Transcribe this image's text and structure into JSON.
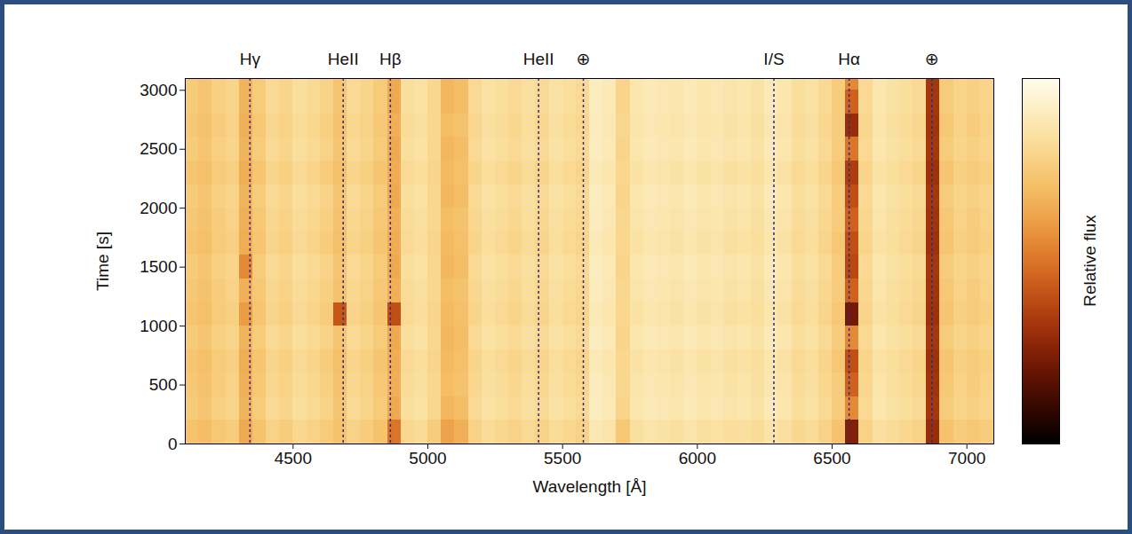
{
  "chart_data": {
    "type": "heatmap",
    "xlabel": "Wavelength [Å]",
    "ylabel": "Time [s]",
    "colorbar_label": "Relative flux",
    "xlim": [
      4100,
      7100
    ],
    "ylim": [
      0,
      3100
    ],
    "xticks": [
      4500,
      5000,
      5500,
      6000,
      6500,
      7000
    ],
    "yticks": [
      0,
      500,
      1000,
      1500,
      2000,
      2500,
      3000
    ],
    "zlim": [
      0,
      1
    ],
    "zticks": [],
    "line_markers": [
      {
        "label": "Hγ",
        "wavelength": 4340
      },
      {
        "label": "HeII",
        "wavelength": 4686
      },
      {
        "label": "Hβ",
        "wavelength": 4861
      },
      {
        "label": "HeII",
        "wavelength": 5411
      },
      {
        "label": "⊕",
        "wavelength": 5577
      },
      {
        "label": "I/S",
        "wavelength": 6284
      },
      {
        "label": "Hα",
        "wavelength": 6563
      },
      {
        "label": "⊕",
        "wavelength": 6870
      }
    ],
    "x_edges": [
      4100,
      4150,
      4200,
      4250,
      4300,
      4350,
      4400,
      4450,
      4500,
      4550,
      4600,
      4650,
      4700,
      4750,
      4800,
      4850,
      4900,
      4950,
      5000,
      5050,
      5100,
      5150,
      5200,
      5250,
      5300,
      5350,
      5400,
      5450,
      5500,
      5550,
      5600,
      5650,
      5700,
      5750,
      5800,
      5850,
      5900,
      5950,
      6000,
      6050,
      6100,
      6150,
      6200,
      6250,
      6300,
      6350,
      6400,
      6450,
      6500,
      6550,
      6600,
      6650,
      6700,
      6750,
      6800,
      6850,
      6900,
      6950,
      7000,
      7050,
      7100
    ],
    "y_edges": [
      0,
      200,
      400,
      600,
      800,
      1000,
      1200,
      1400,
      1600,
      1800,
      2000,
      2200,
      2400,
      2600,
      2800,
      3000,
      3100
    ],
    "cells": [
      [
        0.72,
        0.7,
        0.74,
        0.76,
        0.64,
        0.72,
        0.78,
        0.76,
        0.8,
        0.78,
        0.75,
        0.72,
        0.78,
        0.76,
        0.72,
        0.5,
        0.8,
        0.82,
        0.76,
        0.62,
        0.66,
        0.78,
        0.82,
        0.8,
        0.78,
        0.81,
        0.78,
        0.82,
        0.8,
        0.78,
        0.88,
        0.86,
        0.74,
        0.84,
        0.86,
        0.85,
        0.84,
        0.86,
        0.84,
        0.85,
        0.83,
        0.84,
        0.82,
        0.86,
        0.84,
        0.8,
        0.82,
        0.78,
        0.72,
        0.25,
        0.78,
        0.84,
        0.82,
        0.8,
        0.78,
        0.3,
        0.72,
        0.76,
        0.74,
        0.76
      ],
      [
        0.75,
        0.73,
        0.77,
        0.79,
        0.67,
        0.75,
        0.81,
        0.79,
        0.83,
        0.81,
        0.78,
        0.73,
        0.81,
        0.79,
        0.75,
        0.64,
        0.83,
        0.85,
        0.8,
        0.68,
        0.7,
        0.81,
        0.85,
        0.83,
        0.81,
        0.84,
        0.81,
        0.85,
        0.83,
        0.81,
        0.91,
        0.89,
        0.79,
        0.87,
        0.89,
        0.88,
        0.87,
        0.89,
        0.87,
        0.88,
        0.86,
        0.87,
        0.85,
        0.89,
        0.87,
        0.83,
        0.85,
        0.81,
        0.76,
        0.55,
        0.81,
        0.87,
        0.85,
        0.83,
        0.81,
        0.33,
        0.75,
        0.79,
        0.77,
        0.79
      ],
      [
        0.74,
        0.72,
        0.76,
        0.78,
        0.66,
        0.74,
        0.8,
        0.78,
        0.82,
        0.8,
        0.77,
        0.72,
        0.8,
        0.78,
        0.74,
        0.66,
        0.82,
        0.84,
        0.8,
        0.7,
        0.72,
        0.8,
        0.84,
        0.82,
        0.8,
        0.83,
        0.8,
        0.84,
        0.82,
        0.8,
        0.9,
        0.88,
        0.8,
        0.86,
        0.88,
        0.87,
        0.86,
        0.88,
        0.86,
        0.87,
        0.85,
        0.86,
        0.84,
        0.88,
        0.86,
        0.82,
        0.84,
        0.8,
        0.76,
        0.45,
        0.8,
        0.86,
        0.84,
        0.82,
        0.8,
        0.32,
        0.74,
        0.78,
        0.76,
        0.78
      ],
      [
        0.73,
        0.71,
        0.75,
        0.77,
        0.65,
        0.73,
        0.79,
        0.77,
        0.81,
        0.79,
        0.76,
        0.71,
        0.79,
        0.77,
        0.73,
        0.65,
        0.81,
        0.83,
        0.79,
        0.69,
        0.71,
        0.79,
        0.83,
        0.81,
        0.79,
        0.82,
        0.79,
        0.83,
        0.81,
        0.79,
        0.89,
        0.87,
        0.8,
        0.85,
        0.87,
        0.86,
        0.85,
        0.87,
        0.85,
        0.86,
        0.84,
        0.85,
        0.83,
        0.87,
        0.85,
        0.81,
        0.83,
        0.79,
        0.74,
        0.4,
        0.79,
        0.85,
        0.83,
        0.81,
        0.79,
        0.31,
        0.73,
        0.77,
        0.75,
        0.77
      ],
      [
        0.75,
        0.73,
        0.77,
        0.79,
        0.67,
        0.75,
        0.81,
        0.79,
        0.83,
        0.81,
        0.78,
        0.73,
        0.81,
        0.79,
        0.75,
        0.64,
        0.83,
        0.85,
        0.8,
        0.68,
        0.7,
        0.81,
        0.85,
        0.83,
        0.81,
        0.84,
        0.81,
        0.85,
        0.83,
        0.81,
        0.91,
        0.89,
        0.79,
        0.87,
        0.89,
        0.88,
        0.87,
        0.89,
        0.87,
        0.88,
        0.86,
        0.87,
        0.85,
        0.89,
        0.87,
        0.83,
        0.85,
        0.81,
        0.76,
        0.55,
        0.81,
        0.87,
        0.85,
        0.83,
        0.81,
        0.33,
        0.75,
        0.79,
        0.77,
        0.79
      ],
      [
        0.73,
        0.71,
        0.75,
        0.77,
        0.6,
        0.73,
        0.79,
        0.77,
        0.81,
        0.79,
        0.76,
        0.42,
        0.79,
        0.77,
        0.73,
        0.4,
        0.81,
        0.83,
        0.79,
        0.69,
        0.71,
        0.79,
        0.83,
        0.81,
        0.79,
        0.82,
        0.79,
        0.83,
        0.81,
        0.79,
        0.89,
        0.87,
        0.8,
        0.85,
        0.87,
        0.86,
        0.85,
        0.87,
        0.85,
        0.86,
        0.84,
        0.85,
        0.83,
        0.87,
        0.85,
        0.81,
        0.83,
        0.79,
        0.74,
        0.22,
        0.79,
        0.85,
        0.83,
        0.81,
        0.79,
        0.31,
        0.73,
        0.77,
        0.75,
        0.77
      ],
      [
        0.74,
        0.72,
        0.76,
        0.78,
        0.66,
        0.74,
        0.8,
        0.78,
        0.82,
        0.8,
        0.77,
        0.72,
        0.8,
        0.78,
        0.74,
        0.66,
        0.82,
        0.84,
        0.8,
        0.7,
        0.72,
        0.8,
        0.84,
        0.82,
        0.8,
        0.83,
        0.8,
        0.84,
        0.82,
        0.8,
        0.9,
        0.88,
        0.8,
        0.86,
        0.88,
        0.87,
        0.86,
        0.88,
        0.86,
        0.87,
        0.85,
        0.86,
        0.84,
        0.88,
        0.86,
        0.82,
        0.84,
        0.8,
        0.76,
        0.45,
        0.8,
        0.86,
        0.84,
        0.82,
        0.8,
        0.32,
        0.74,
        0.78,
        0.76,
        0.78
      ],
      [
        0.75,
        0.73,
        0.77,
        0.79,
        0.55,
        0.75,
        0.81,
        0.79,
        0.83,
        0.81,
        0.78,
        0.73,
        0.81,
        0.79,
        0.75,
        0.64,
        0.83,
        0.85,
        0.8,
        0.68,
        0.7,
        0.81,
        0.85,
        0.83,
        0.81,
        0.84,
        0.81,
        0.85,
        0.83,
        0.81,
        0.91,
        0.89,
        0.79,
        0.87,
        0.89,
        0.88,
        0.87,
        0.89,
        0.87,
        0.88,
        0.86,
        0.87,
        0.85,
        0.89,
        0.87,
        0.83,
        0.85,
        0.81,
        0.76,
        0.38,
        0.81,
        0.87,
        0.85,
        0.83,
        0.81,
        0.33,
        0.75,
        0.79,
        0.77,
        0.79
      ],
      [
        0.73,
        0.71,
        0.75,
        0.77,
        0.65,
        0.73,
        0.79,
        0.77,
        0.81,
        0.79,
        0.76,
        0.71,
        0.79,
        0.77,
        0.73,
        0.65,
        0.81,
        0.83,
        0.79,
        0.69,
        0.71,
        0.79,
        0.83,
        0.81,
        0.79,
        0.82,
        0.79,
        0.83,
        0.81,
        0.79,
        0.89,
        0.87,
        0.8,
        0.85,
        0.87,
        0.86,
        0.85,
        0.87,
        0.85,
        0.86,
        0.84,
        0.85,
        0.83,
        0.87,
        0.85,
        0.81,
        0.83,
        0.79,
        0.74,
        0.4,
        0.79,
        0.85,
        0.83,
        0.81,
        0.79,
        0.31,
        0.73,
        0.77,
        0.75,
        0.77
      ],
      [
        0.74,
        0.72,
        0.76,
        0.78,
        0.66,
        0.74,
        0.8,
        0.78,
        0.82,
        0.8,
        0.77,
        0.72,
        0.8,
        0.78,
        0.74,
        0.66,
        0.82,
        0.84,
        0.8,
        0.7,
        0.72,
        0.8,
        0.84,
        0.82,
        0.8,
        0.83,
        0.8,
        0.84,
        0.82,
        0.8,
        0.9,
        0.88,
        0.8,
        0.86,
        0.88,
        0.87,
        0.86,
        0.88,
        0.86,
        0.87,
        0.85,
        0.86,
        0.84,
        0.88,
        0.86,
        0.82,
        0.84,
        0.8,
        0.76,
        0.45,
        0.8,
        0.86,
        0.84,
        0.82,
        0.8,
        0.32,
        0.74,
        0.78,
        0.76,
        0.78
      ],
      [
        0.75,
        0.73,
        0.77,
        0.79,
        0.67,
        0.75,
        0.81,
        0.79,
        0.83,
        0.81,
        0.78,
        0.73,
        0.81,
        0.79,
        0.75,
        0.64,
        0.83,
        0.85,
        0.8,
        0.68,
        0.7,
        0.81,
        0.85,
        0.83,
        0.81,
        0.84,
        0.81,
        0.85,
        0.83,
        0.81,
        0.91,
        0.89,
        0.79,
        0.87,
        0.89,
        0.88,
        0.87,
        0.89,
        0.87,
        0.88,
        0.86,
        0.87,
        0.85,
        0.89,
        0.87,
        0.83,
        0.85,
        0.81,
        0.76,
        0.4,
        0.81,
        0.87,
        0.85,
        0.83,
        0.81,
        0.33,
        0.75,
        0.79,
        0.77,
        0.79
      ],
      [
        0.73,
        0.71,
        0.75,
        0.77,
        0.65,
        0.73,
        0.79,
        0.77,
        0.81,
        0.79,
        0.76,
        0.71,
        0.79,
        0.77,
        0.73,
        0.65,
        0.81,
        0.83,
        0.79,
        0.69,
        0.71,
        0.79,
        0.83,
        0.81,
        0.79,
        0.82,
        0.79,
        0.83,
        0.81,
        0.79,
        0.89,
        0.87,
        0.8,
        0.85,
        0.87,
        0.86,
        0.85,
        0.87,
        0.85,
        0.86,
        0.84,
        0.85,
        0.83,
        0.87,
        0.85,
        0.81,
        0.83,
        0.79,
        0.74,
        0.35,
        0.79,
        0.85,
        0.83,
        0.81,
        0.79,
        0.31,
        0.73,
        0.77,
        0.75,
        0.77
      ],
      [
        0.75,
        0.73,
        0.77,
        0.79,
        0.67,
        0.75,
        0.81,
        0.79,
        0.83,
        0.81,
        0.78,
        0.73,
        0.81,
        0.79,
        0.75,
        0.64,
        0.83,
        0.85,
        0.8,
        0.68,
        0.7,
        0.81,
        0.85,
        0.83,
        0.81,
        0.84,
        0.81,
        0.85,
        0.83,
        0.81,
        0.91,
        0.89,
        0.79,
        0.87,
        0.89,
        0.88,
        0.87,
        0.89,
        0.87,
        0.88,
        0.86,
        0.87,
        0.85,
        0.89,
        0.87,
        0.83,
        0.85,
        0.81,
        0.76,
        0.5,
        0.81,
        0.87,
        0.85,
        0.83,
        0.81,
        0.33,
        0.75,
        0.79,
        0.77,
        0.79
      ],
      [
        0.74,
        0.72,
        0.76,
        0.78,
        0.66,
        0.74,
        0.8,
        0.78,
        0.82,
        0.8,
        0.77,
        0.72,
        0.8,
        0.78,
        0.74,
        0.66,
        0.82,
        0.84,
        0.8,
        0.7,
        0.72,
        0.8,
        0.84,
        0.82,
        0.8,
        0.83,
        0.8,
        0.84,
        0.82,
        0.8,
        0.9,
        0.88,
        0.8,
        0.86,
        0.88,
        0.87,
        0.86,
        0.88,
        0.86,
        0.87,
        0.85,
        0.86,
        0.84,
        0.88,
        0.86,
        0.82,
        0.84,
        0.8,
        0.76,
        0.3,
        0.8,
        0.86,
        0.84,
        0.82,
        0.8,
        0.32,
        0.74,
        0.78,
        0.76,
        0.78
      ],
      [
        0.75,
        0.73,
        0.77,
        0.79,
        0.67,
        0.75,
        0.81,
        0.79,
        0.83,
        0.81,
        0.78,
        0.73,
        0.81,
        0.79,
        0.75,
        0.64,
        0.83,
        0.85,
        0.8,
        0.68,
        0.7,
        0.81,
        0.85,
        0.83,
        0.81,
        0.84,
        0.81,
        0.85,
        0.83,
        0.81,
        0.91,
        0.89,
        0.79,
        0.87,
        0.89,
        0.88,
        0.87,
        0.89,
        0.87,
        0.88,
        0.86,
        0.87,
        0.85,
        0.89,
        0.87,
        0.83,
        0.85,
        0.81,
        0.76,
        0.45,
        0.81,
        0.87,
        0.85,
        0.83,
        0.81,
        0.33,
        0.75,
        0.79,
        0.77,
        0.79
      ],
      [
        0.75,
        0.73,
        0.77,
        0.79,
        0.67,
        0.75,
        0.81,
        0.79,
        0.83,
        0.81,
        0.78,
        0.73,
        0.81,
        0.79,
        0.75,
        0.64,
        0.83,
        0.85,
        0.8,
        0.68,
        0.7,
        0.81,
        0.85,
        0.83,
        0.81,
        0.84,
        0.81,
        0.85,
        0.83,
        0.81,
        0.91,
        0.89,
        0.79,
        0.87,
        0.89,
        0.88,
        0.87,
        0.89,
        0.87,
        0.88,
        0.86,
        0.87,
        0.85,
        0.89,
        0.87,
        0.83,
        0.85,
        0.81,
        0.76,
        0.55,
        0.81,
        0.87,
        0.85,
        0.83,
        0.81,
        0.33,
        0.75,
        0.79,
        0.77,
        0.79
      ]
    ]
  }
}
